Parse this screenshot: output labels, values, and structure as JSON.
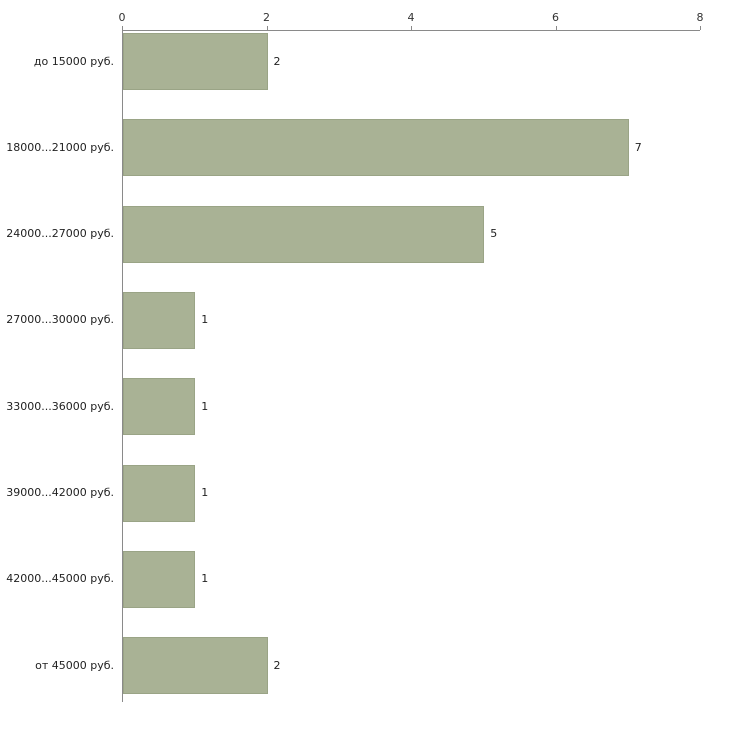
{
  "chart_data": {
    "type": "bar",
    "orientation": "horizontal",
    "title": "",
    "xlabel": "",
    "ylabel": "",
    "categories": [
      "до 15000 руб.",
      "18000...21000 руб.",
      "24000...27000 руб.",
      "27000...30000 руб.",
      "33000...36000 руб.",
      "39000...42000 руб.",
      "42000...45000 руб.",
      "от 45000 руб."
    ],
    "values": [
      2,
      7,
      5,
      1,
      1,
      1,
      1,
      2
    ],
    "xlim": [
      0,
      8
    ],
    "x_ticks": [
      0,
      2,
      4,
      6,
      8
    ],
    "grid": false,
    "legend": false,
    "axis_position": "top-left",
    "bar_color": "#a9b295",
    "bar_border_color": "#9aa486",
    "axis_color": "#8a8a8a",
    "label_color": "#222222",
    "background_color": "#ffffff"
  }
}
